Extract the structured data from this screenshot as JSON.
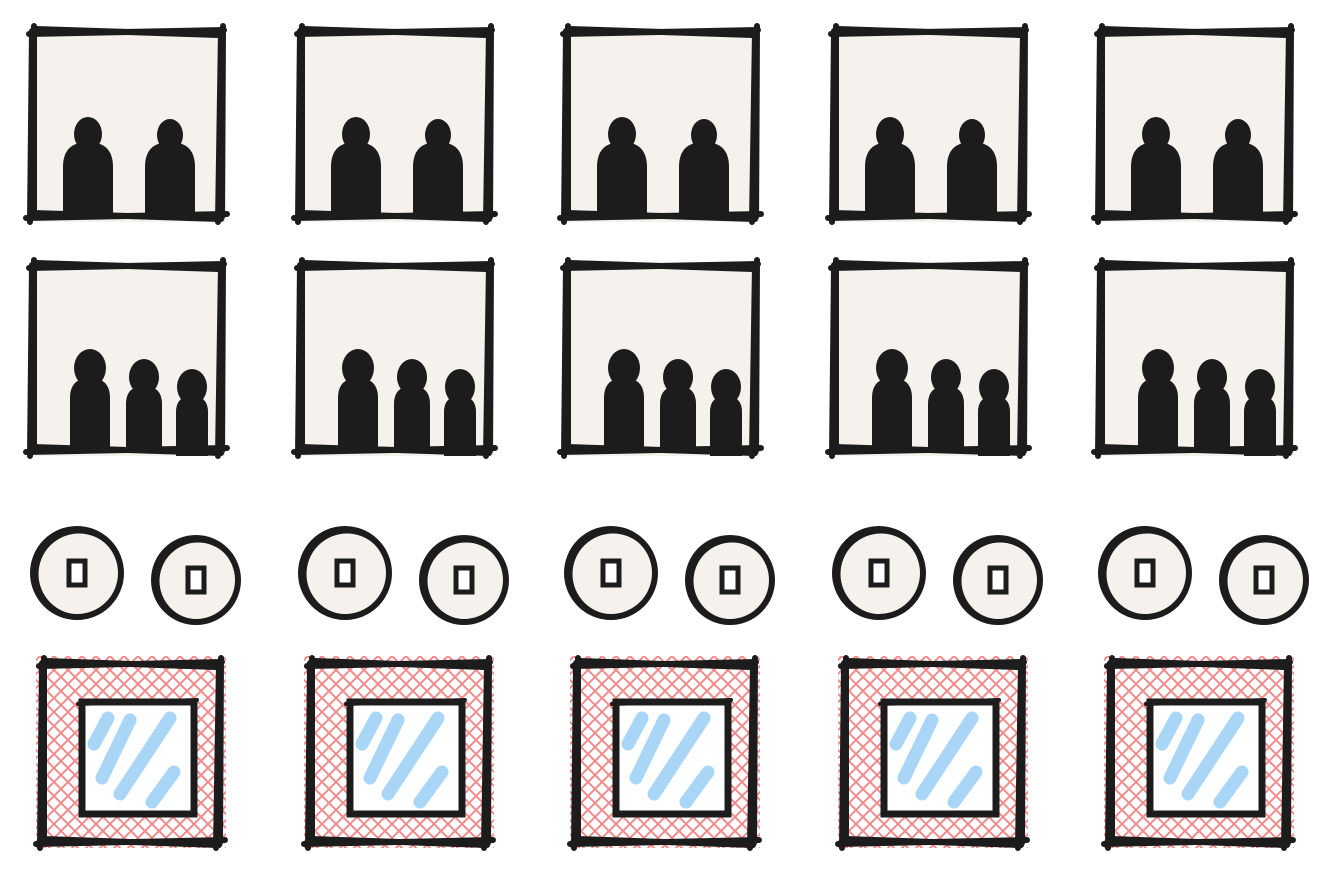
{
  "colors": {
    "ink": "#1c1c1c",
    "paper": "#f5f1ec",
    "window_hatch": "#f28b8b",
    "glass": "#a9d5f7",
    "background": "#ffffff"
  },
  "icon_names": {
    "two_people_frame": "two-people-icon",
    "three_people_frame": "three-people-icon",
    "socket_button": "socket-icon",
    "window_pane": "window-icon"
  },
  "grid": {
    "columns": 5,
    "rows": [
      {
        "kind": "two-people-frame",
        "name": "two-people-icon"
      },
      {
        "kind": "three-people-frame",
        "name": "three-people-icon"
      },
      {
        "kind": "socket-pair",
        "name": "socket-icon"
      },
      {
        "kind": "window-pane",
        "name": "window-icon"
      }
    ]
  }
}
